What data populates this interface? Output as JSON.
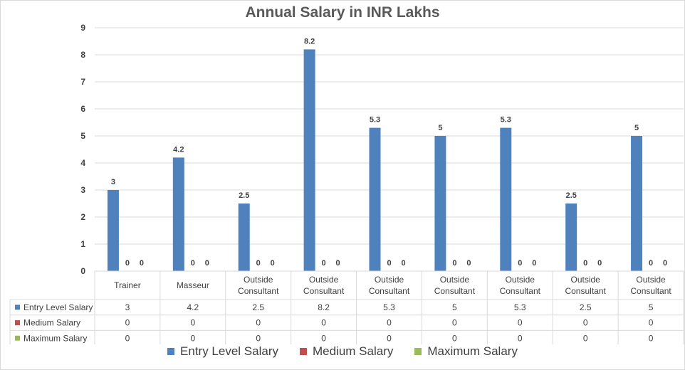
{
  "chart_data": {
    "type": "bar",
    "title": "Annual Salary in INR Lakhs",
    "categories": [
      [
        "Trainer"
      ],
      [
        "Masseur"
      ],
      [
        "Outside",
        "Consultant"
      ],
      [
        "Outside",
        "Consultant"
      ],
      [
        "Outside",
        "Consultant"
      ],
      [
        "Outside",
        "Consultant"
      ],
      [
        "Outside",
        "Consultant"
      ],
      [
        "Outside",
        "Consultant"
      ],
      [
        "Outside",
        "Consultant"
      ]
    ],
    "series": [
      {
        "name": "Entry Level Salary",
        "color": "#4f81bd",
        "values": [
          3,
          4.2,
          2.5,
          8.2,
          5.3,
          5,
          5.3,
          2.5,
          5
        ]
      },
      {
        "name": "Medium Salary",
        "color": "#c0504d",
        "values": [
          0,
          0,
          0,
          0,
          0,
          0,
          0,
          0,
          0
        ]
      },
      {
        "name": "Maximum Salary",
        "color": "#9bbb59",
        "values": [
          0,
          0,
          0,
          0,
          0,
          0,
          0,
          0,
          0
        ]
      }
    ],
    "ylim": [
      0,
      9
    ],
    "yticks": [
      0,
      1,
      2,
      3,
      4,
      5,
      6,
      7,
      8,
      9
    ],
    "grid": true,
    "legend": "bottom",
    "data_table": true
  }
}
